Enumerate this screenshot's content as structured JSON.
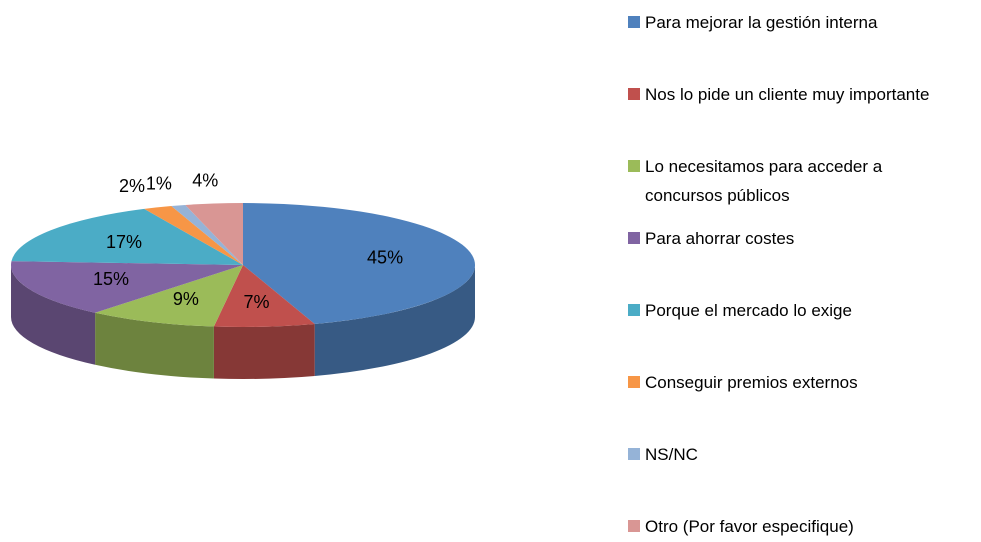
{
  "chart_data": {
    "type": "pie3d",
    "categories": [
      "Para mejorar la gestión interna",
      "Nos lo pide un cliente muy importante",
      "Lo necesitamos para acceder a concursos públicos",
      "Para ahorrar costes",
      "Porque el mercado lo exige",
      "Conseguir premios externos",
      "NS/NC",
      "Otro (Por favor especifique)"
    ],
    "values": [
      45,
      7,
      9,
      15,
      17,
      2,
      1,
      4
    ],
    "value_labels": [
      "45%",
      "7%",
      "9%",
      "15%",
      "17%",
      "2%",
      "1%",
      "4%"
    ],
    "colors": [
      "#4f81bd",
      "#c0504d",
      "#9bbb59",
      "#8064a2",
      "#4bacc6",
      "#f79646",
      "#95b3d7",
      "#d99694"
    ],
    "legend": "right"
  }
}
